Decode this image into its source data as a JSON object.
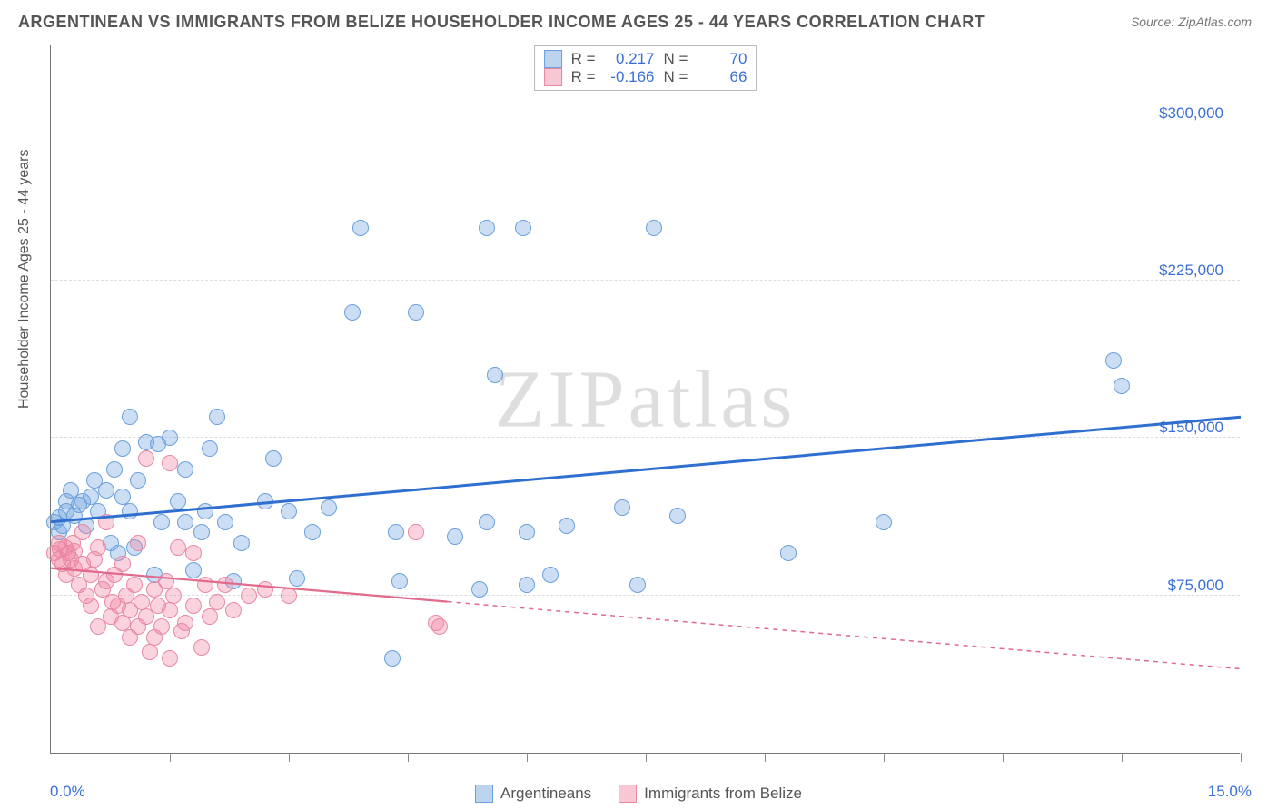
{
  "title": "ARGENTINEAN VS IMMIGRANTS FROM BELIZE HOUSEHOLDER INCOME AGES 25 - 44 YEARS CORRELATION CHART",
  "source": "Source: ZipAtlas.com",
  "ylabel": "Householder Income Ages 25 - 44 years",
  "watermark_a": "ZIP",
  "watermark_b": "atlas",
  "chart": {
    "type": "scatter",
    "xlim": [
      0,
      15
    ],
    "ylim": [
      0,
      337500
    ],
    "x_ticks": [
      1.5,
      3.0,
      4.5,
      6.0,
      7.5,
      9.0,
      10.5,
      12.0,
      13.5,
      15.0
    ],
    "x_tick_labels": {
      "start": "0.0%",
      "end": "15.0%"
    },
    "y_grid": [
      75000,
      150000,
      225000,
      300000,
      337500
    ],
    "y_labels": {
      "75000": "$75,000",
      "150000": "$150,000",
      "225000": "$225,000",
      "300000": "$300,000"
    },
    "colors": {
      "blue_fill": "rgba(108,160,220,0.35)",
      "blue_stroke": "#6ca0dc",
      "blue_line": "#2f6fd0",
      "pink_fill": "rgba(240,130,160,0.35)",
      "pink_stroke": "#e889a3",
      "pink_line": "#e26a8d",
      "grid": "#dddddd",
      "axis": "#777777",
      "text": "#555555",
      "value_text": "#3b6fd8",
      "background": "#ffffff"
    },
    "point_radius": 9,
    "series": [
      {
        "name": "Argentineans",
        "color_key": "blue",
        "R": "0.217",
        "N": "70",
        "trend": {
          "x1": 0,
          "y1": 110000,
          "x2": 15,
          "y2": 160000,
          "solid_until_x": 15
        },
        "points": [
          [
            0.1,
            112000
          ],
          [
            0.15,
            108000
          ],
          [
            0.2,
            115000
          ],
          [
            0.2,
            120000
          ],
          [
            0.25,
            125000
          ],
          [
            0.3,
            113000
          ],
          [
            0.35,
            118000
          ],
          [
            0.4,
            120000
          ],
          [
            0.45,
            108000
          ],
          [
            0.5,
            122000
          ],
          [
            0.55,
            130000
          ],
          [
            0.6,
            115000
          ],
          [
            0.7,
            125000
          ],
          [
            0.75,
            100000
          ],
          [
            0.8,
            135000
          ],
          [
            0.85,
            95000
          ],
          [
            0.9,
            122000
          ],
          [
            0.9,
            145000
          ],
          [
            1.0,
            160000
          ],
          [
            1.0,
            115000
          ],
          [
            1.05,
            98000
          ],
          [
            1.1,
            130000
          ],
          [
            1.2,
            148000
          ],
          [
            1.3,
            85000
          ],
          [
            1.35,
            147000
          ],
          [
            1.4,
            110000
          ],
          [
            1.5,
            150000
          ],
          [
            1.6,
            120000
          ],
          [
            1.7,
            110000
          ],
          [
            1.7,
            135000
          ],
          [
            1.8,
            87000
          ],
          [
            1.9,
            105000
          ],
          [
            1.95,
            115000
          ],
          [
            2.0,
            145000
          ],
          [
            2.1,
            160000
          ],
          [
            2.2,
            110000
          ],
          [
            2.3,
            82000
          ],
          [
            2.4,
            100000
          ],
          [
            2.7,
            120000
          ],
          [
            2.8,
            140000
          ],
          [
            3.0,
            115000
          ],
          [
            3.1,
            83000
          ],
          [
            3.3,
            105000
          ],
          [
            3.5,
            117000
          ],
          [
            3.8,
            210000
          ],
          [
            3.9,
            250000
          ],
          [
            4.3,
            45000
          ],
          [
            4.35,
            105000
          ],
          [
            4.4,
            82000
          ],
          [
            4.6,
            210000
          ],
          [
            5.1,
            103000
          ],
          [
            5.4,
            78000
          ],
          [
            5.5,
            250000
          ],
          [
            5.5,
            110000
          ],
          [
            5.6,
            180000
          ],
          [
            5.95,
            250000
          ],
          [
            6.0,
            80000
          ],
          [
            6.0,
            105000
          ],
          [
            6.3,
            85000
          ],
          [
            6.5,
            108000
          ],
          [
            7.2,
            117000
          ],
          [
            7.4,
            80000
          ],
          [
            7.6,
            250000
          ],
          [
            7.9,
            113000
          ],
          [
            9.3,
            95000
          ],
          [
            10.5,
            110000
          ],
          [
            13.4,
            187000
          ],
          [
            13.5,
            175000
          ],
          [
            0.05,
            110000
          ],
          [
            0.1,
            105000
          ]
        ]
      },
      {
        "name": "Immigrants from Belize",
        "color_key": "pink",
        "R": "-0.166",
        "N": "66",
        "trend": {
          "x1": 0,
          "y1": 88000,
          "x2": 15,
          "y2": 40000,
          "solid_until_x": 5.0
        },
        "points": [
          [
            0.05,
            95000
          ],
          [
            0.1,
            92000
          ],
          [
            0.1,
            100000
          ],
          [
            0.12,
            97000
          ],
          [
            0.15,
            90000
          ],
          [
            0.18,
            98000
          ],
          [
            0.2,
            85000
          ],
          [
            0.22,
            95000
          ],
          [
            0.25,
            92000
          ],
          [
            0.28,
            100000
          ],
          [
            0.3,
            96000
          ],
          [
            0.3,
            88000
          ],
          [
            0.35,
            80000
          ],
          [
            0.4,
            90000
          ],
          [
            0.4,
            105000
          ],
          [
            0.45,
            75000
          ],
          [
            0.5,
            85000
          ],
          [
            0.5,
            70000
          ],
          [
            0.55,
            92000
          ],
          [
            0.6,
            98000
          ],
          [
            0.6,
            60000
          ],
          [
            0.65,
            78000
          ],
          [
            0.7,
            82000
          ],
          [
            0.7,
            110000
          ],
          [
            0.75,
            65000
          ],
          [
            0.78,
            72000
          ],
          [
            0.8,
            85000
          ],
          [
            0.85,
            70000
          ],
          [
            0.9,
            62000
          ],
          [
            0.9,
            90000
          ],
          [
            0.95,
            75000
          ],
          [
            1.0,
            68000
          ],
          [
            1.0,
            55000
          ],
          [
            1.05,
            80000
          ],
          [
            1.1,
            60000
          ],
          [
            1.1,
            100000
          ],
          [
            1.15,
            72000
          ],
          [
            1.2,
            65000
          ],
          [
            1.2,
            140000
          ],
          [
            1.25,
            48000
          ],
          [
            1.3,
            78000
          ],
          [
            1.3,
            55000
          ],
          [
            1.35,
            70000
          ],
          [
            1.4,
            60000
          ],
          [
            1.45,
            82000
          ],
          [
            1.5,
            45000
          ],
          [
            1.5,
            68000
          ],
          [
            1.5,
            138000
          ],
          [
            1.55,
            75000
          ],
          [
            1.6,
            98000
          ],
          [
            1.65,
            58000
          ],
          [
            1.7,
            62000
          ],
          [
            1.8,
            95000
          ],
          [
            1.8,
            70000
          ],
          [
            1.9,
            50000
          ],
          [
            1.95,
            80000
          ],
          [
            2.0,
            65000
          ],
          [
            2.1,
            72000
          ],
          [
            2.2,
            80000
          ],
          [
            2.3,
            68000
          ],
          [
            2.5,
            75000
          ],
          [
            2.7,
            78000
          ],
          [
            3.0,
            75000
          ],
          [
            4.6,
            105000
          ],
          [
            4.85,
            62000
          ],
          [
            4.9,
            60000
          ]
        ]
      }
    ]
  },
  "legend_bottom": [
    {
      "label": "Argentineans",
      "color": "blue"
    },
    {
      "label": "Immigrants from Belize",
      "color": "pink"
    }
  ]
}
